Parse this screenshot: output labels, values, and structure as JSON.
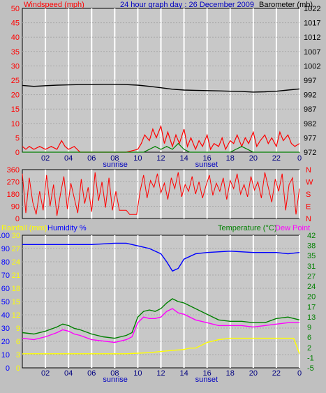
{
  "colors": {
    "background": "#c0c0c0",
    "plot_bg": "#c8c8c8",
    "grid": "#ffffff",
    "windspeed": "#ff0000",
    "gust": "#008000",
    "barometer": "#000000",
    "direction": "#ff0000",
    "humidity": "#0000ff",
    "rainfall": "#ffff00",
    "temperature": "#008000",
    "dewpoint": "#ff00ff",
    "title": "#0000c0"
  },
  "chart_data": [
    {
      "type": "line",
      "title": "24 hour graph day : 26 December 2009",
      "left_axis_label": "Windspeed (mph)",
      "right_axis_label": "Barometer (mb)",
      "left_ylim": [
        0,
        50
      ],
      "right_ylim": [
        972,
        1022
      ],
      "left_ticks": [
        "0",
        "5",
        "10",
        "15",
        "20",
        "25",
        "30",
        "35",
        "40",
        "45",
        "50"
      ],
      "right_ticks": [
        "972",
        "977",
        "982",
        "987",
        "992",
        "997",
        "1002",
        "1007",
        "1012",
        "1017",
        "1022"
      ],
      "x_ticks": [
        "02",
        "04",
        "06",
        "08",
        "10",
        "12",
        "14",
        "16",
        "18",
        "20",
        "22",
        "0"
      ],
      "x_markers": [
        {
          "label": "sunrise",
          "x": 8.05
        },
        {
          "label": "sunset",
          "x": 15.95
        }
      ],
      "grid": true,
      "series": [
        {
          "key": "barometer",
          "axis": "right",
          "x": [
            0,
            1,
            2,
            3,
            4,
            5,
            6,
            7,
            8,
            9,
            10,
            11,
            12,
            13,
            14,
            15,
            16,
            17,
            18,
            19,
            20,
            21,
            22,
            23,
            24
          ],
          "values": [
            995.2,
            994.9,
            995.1,
            995.3,
            995.4,
            995.5,
            995.5,
            995.6,
            995.6,
            995.5,
            995.3,
            994.9,
            994.4,
            993.9,
            993.6,
            993.5,
            993.4,
            993.3,
            993.2,
            993.1,
            992.9,
            993.0,
            993.2,
            993.6,
            994.0
          ]
        },
        {
          "key": "windspeed",
          "axis": "left",
          "x": [
            0,
            0.3,
            0.6,
            1,
            1.5,
            2,
            2.5,
            3,
            3.4,
            3.7,
            4,
            4.5,
            5,
            5.5,
            6,
            7,
            8,
            9,
            10,
            10.3,
            10.6,
            11,
            11.3,
            11.6,
            12,
            12.3,
            12.6,
            13,
            13.3,
            13.6,
            14,
            14.3,
            14.6,
            15,
            15.3,
            15.6,
            16,
            16.3,
            16.6,
            17,
            17.3,
            17.6,
            18,
            18.3,
            18.6,
            19,
            19.3,
            19.6,
            20,
            20.3,
            20.6,
            21,
            21.3,
            21.6,
            22,
            22.3,
            22.6,
            23,
            23.3,
            23.6,
            24
          ],
          "values": [
            2,
            1,
            2,
            1,
            2,
            1,
            2,
            1,
            4,
            2,
            1,
            2,
            0,
            0,
            0,
            0,
            0,
            0,
            1,
            3,
            6,
            4,
            8,
            5,
            9,
            3,
            7,
            2,
            6,
            3,
            8,
            2,
            5,
            1,
            4,
            2,
            6,
            1,
            3,
            2,
            5,
            1,
            4,
            3,
            6,
            2,
            5,
            3,
            7,
            2,
            4,
            6,
            3,
            5,
            2,
            7,
            4,
            6,
            3,
            2,
            3
          ]
        },
        {
          "key": "gust",
          "axis": "left",
          "x": [
            0,
            10,
            10.5,
            11,
            11.5,
            12,
            12.5,
            13,
            13.5,
            14,
            14.5,
            15,
            16,
            17,
            18,
            18.5,
            19,
            19.5,
            20,
            21,
            22,
            23,
            24
          ],
          "values": [
            0,
            0,
            0,
            1,
            2,
            1,
            2,
            1,
            3,
            1,
            0,
            0,
            0,
            0,
            0,
            1,
            2,
            1,
            0,
            0,
            0,
            0,
            0
          ]
        }
      ]
    },
    {
      "type": "line",
      "left_ticks": [
        "0",
        "90",
        "180",
        "270",
        "360"
      ],
      "left_ylim": [
        0,
        360
      ],
      "right_labels": [
        "N",
        "W",
        "S",
        "E",
        "N"
      ],
      "series": [
        {
          "key": "direction",
          "x": [
            0,
            0.3,
            0.6,
            0.9,
            1.2,
            1.5,
            1.8,
            2.1,
            2.4,
            2.7,
            3,
            3.3,
            3.6,
            3.9,
            4.2,
            4.5,
            4.8,
            5.1,
            5.4,
            5.7,
            6,
            6.3,
            6.6,
            6.9,
            7.2,
            7.5,
            7.8,
            8.1,
            8.4,
            8.7,
            9,
            9.3,
            9.6,
            9.9,
            10.2,
            10.5,
            10.8,
            11.1,
            11.4,
            11.7,
            12,
            12.3,
            12.6,
            12.9,
            13.2,
            13.5,
            13.8,
            14.1,
            14.4,
            14.7,
            15,
            15.3,
            15.6,
            15.9,
            16.2,
            16.5,
            16.8,
            17.1,
            17.4,
            17.7,
            18,
            18.3,
            18.6,
            18.9,
            19.2,
            19.5,
            19.8,
            20.1,
            20.4,
            20.7,
            21,
            21.3,
            21.6,
            21.9,
            22.2,
            22.5,
            22.8,
            23.1,
            23.4,
            23.7,
            24
          ],
          "values": [
            330,
            40,
            300,
            120,
            30,
            200,
            60,
            320,
            90,
            250,
            20,
            180,
            310,
            70,
            260,
            150,
            40,
            290,
            110,
            230,
            50,
            340,
            130,
            270,
            80,
            300,
            60,
            200,
            60,
            60,
            60,
            30,
            30,
            30,
            200,
            320,
            150,
            280,
            230,
            330,
            190,
            260,
            140,
            300,
            220,
            340,
            160,
            250,
            200,
            310,
            180,
            270,
            150,
            240,
            320,
            170,
            260,
            200,
            300,
            140,
            280,
            220,
            330,
            180,
            250,
            160,
            310,
            210,
            270,
            150,
            340,
            230,
            120,
            290,
            200,
            330,
            60,
            250,
            300,
            30,
            220
          ]
        }
      ]
    },
    {
      "type": "line",
      "left_axis_label_1": "Rainfall (mm)",
      "left_axis_label_2": "Humidity %",
      "right_axis_label_1": "Temperature (°C)",
      "right_axis_label_2": "Dew Point",
      "humidity_ticks": [
        "0",
        "10",
        "20",
        "30",
        "40",
        "50",
        "60",
        "70",
        "80",
        "90",
        "100"
      ],
      "rainfall_ticks": [
        "0",
        "3",
        "6",
        "9",
        "12",
        "15",
        "18",
        "21",
        "24",
        "27",
        "30"
      ],
      "temp_ticks": [
        "-5",
        "-1",
        "2",
        "6",
        "9",
        "13",
        "17",
        "20",
        "24",
        "27",
        "31",
        "35",
        "38",
        "42"
      ],
      "temp_ylim": [
        -5,
        42
      ],
      "humidity_ylim": [
        0,
        100
      ],
      "x_ticks": [
        "02",
        "04",
        "06",
        "08",
        "10",
        "12",
        "14",
        "16",
        "18",
        "20",
        "22",
        "0"
      ],
      "x_markers": [
        {
          "label": "sunrise",
          "x": 8.05
        },
        {
          "label": "sunset",
          "x": 15.95
        }
      ],
      "grid": true,
      "series": [
        {
          "key": "humidity",
          "x": [
            0,
            2,
            4,
            6,
            8,
            9,
            10,
            11,
            12,
            12.5,
            13,
            13.5,
            14,
            15,
            16,
            18,
            20,
            22,
            23,
            24
          ],
          "values": [
            93,
            93,
            93,
            93,
            94,
            94,
            92,
            90,
            86,
            80,
            73,
            75,
            82,
            86,
            87,
            88,
            87,
            87,
            86,
            87
          ]
        },
        {
          "key": "temperature",
          "x": [
            0,
            1,
            2,
            3,
            3.5,
            4,
            4.5,
            5,
            6,
            7,
            8,
            9,
            9.5,
            10,
            10.5,
            11,
            11.5,
            12,
            12.5,
            13,
            13.5,
            14,
            15,
            16,
            17,
            18,
            19,
            20,
            21,
            22,
            23,
            24
          ],
          "values": [
            7.5,
            7.0,
            8.0,
            9.5,
            10.5,
            10.0,
            9.0,
            8.5,
            7.0,
            6.0,
            5.5,
            6.5,
            7.5,
            13,
            15,
            15.5,
            15,
            16,
            18,
            19.5,
            18.5,
            18,
            16,
            14,
            12,
            11.5,
            11.5,
            11,
            11,
            12.5,
            13,
            12
          ]
        },
        {
          "key": "dewpoint",
          "x": [
            0,
            1,
            2,
            3,
            3.5,
            4,
            4.5,
            5,
            6,
            7,
            8,
            9,
            9.5,
            10,
            10.5,
            11,
            11.5,
            12,
            12.5,
            13,
            13.5,
            14,
            15,
            16,
            17,
            18,
            19,
            20,
            21,
            22,
            23,
            24
          ],
          "values": [
            5.5,
            5.0,
            6.0,
            7.5,
            8.5,
            8.0,
            7.0,
            6.5,
            5.0,
            4.5,
            4.0,
            5.0,
            6.0,
            11,
            13,
            12.5,
            12.5,
            13,
            15,
            16,
            14.5,
            14,
            12,
            11,
            10,
            10,
            10,
            9.5,
            10,
            10.5,
            11,
            11
          ]
        },
        {
          "key": "rainfall",
          "x": [
            0,
            9,
            10,
            11,
            12,
            13,
            14,
            14.5,
            15,
            16,
            17,
            18,
            19,
            20,
            21,
            22,
            23,
            23.5,
            24
          ],
          "values": [
            0,
            0,
            0.2,
            0.4,
            0.8,
            1.2,
            1.5,
            2,
            2,
            4,
            5,
            5.5,
            5.5,
            5.5,
            5.5,
            5.5,
            5.5,
            5.5,
            0
          ]
        }
      ]
    }
  ]
}
